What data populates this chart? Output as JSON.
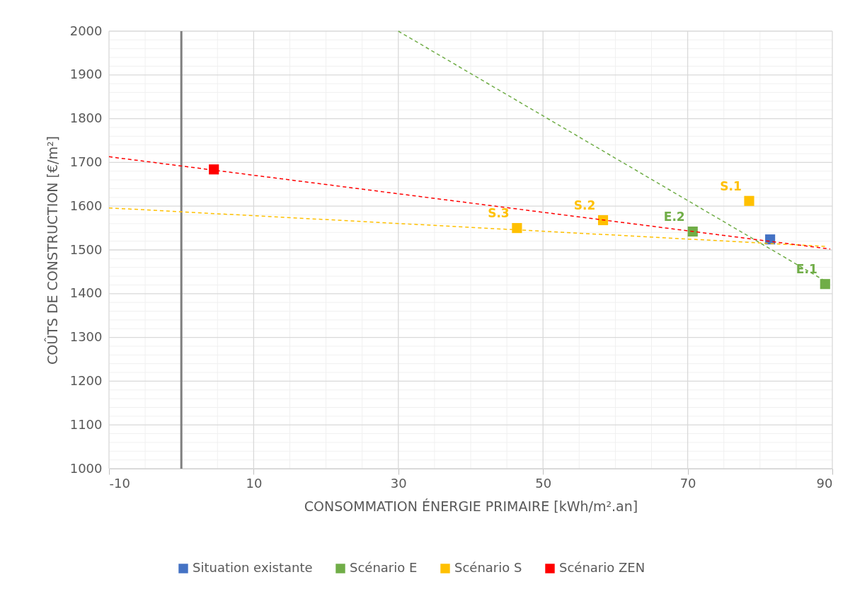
{
  "chart_data": {
    "type": "scatter",
    "xlabel": "CONSOMMATION ÉNERGIE PRIMAIRE [kWh/m².an]",
    "ylabel": "COÛTS DE CONSTRUCTION [€/m²]",
    "xlim": [
      -10,
      90
    ],
    "ylim": [
      1000,
      2000
    ],
    "xticks": [
      -10,
      10,
      30,
      50,
      70,
      90
    ],
    "yticks": [
      1000,
      1100,
      1200,
      1300,
      1400,
      1500,
      1600,
      1700,
      1800,
      1900,
      2000
    ],
    "grid": true,
    "legend": "bottom",
    "marker": "square",
    "ref_lines": [
      {
        "axis": "x",
        "value": 0,
        "color": "#7f7f7f"
      }
    ],
    "series": [
      {
        "name": "Situation existante",
        "color": "#4472c4",
        "x": [
          81.4
        ],
        "values": [
          1524
        ]
      },
      {
        "name": "Scénario E",
        "color": "#70ad47",
        "x": [
          89.0,
          70.7
        ],
        "values": [
          1422,
          1542
        ],
        "value_labels": [
          "E.1",
          "E.2"
        ]
      },
      {
        "name": "Scénario S",
        "color": "#ffc000",
        "x": [
          78.5,
          58.3,
          46.4
        ],
        "values": [
          1612,
          1568,
          1550
        ],
        "value_labels": [
          "S.1",
          "S.2",
          "S.3"
        ]
      },
      {
        "name": "Scénario ZEN",
        "color": "#ff0000",
        "x": [
          4.5
        ],
        "values": [
          1684
        ]
      },
      {
        "type": "line",
        "color": "#70ad47",
        "line_style": "dashed",
        "marker": "none",
        "x": [
          30,
          89
        ],
        "values": [
          2000,
          1429
        ]
      },
      {
        "type": "line",
        "color": "#ffc000",
        "line_style": "dashed",
        "marker": "none",
        "x": [
          -10,
          89
        ],
        "values": [
          1596,
          1508
        ]
      },
      {
        "type": "line",
        "color": "#ff0000",
        "line_style": "dashed",
        "marker": "none",
        "x": [
          -10,
          89.7
        ],
        "values": [
          1713,
          1502
        ]
      }
    ]
  }
}
